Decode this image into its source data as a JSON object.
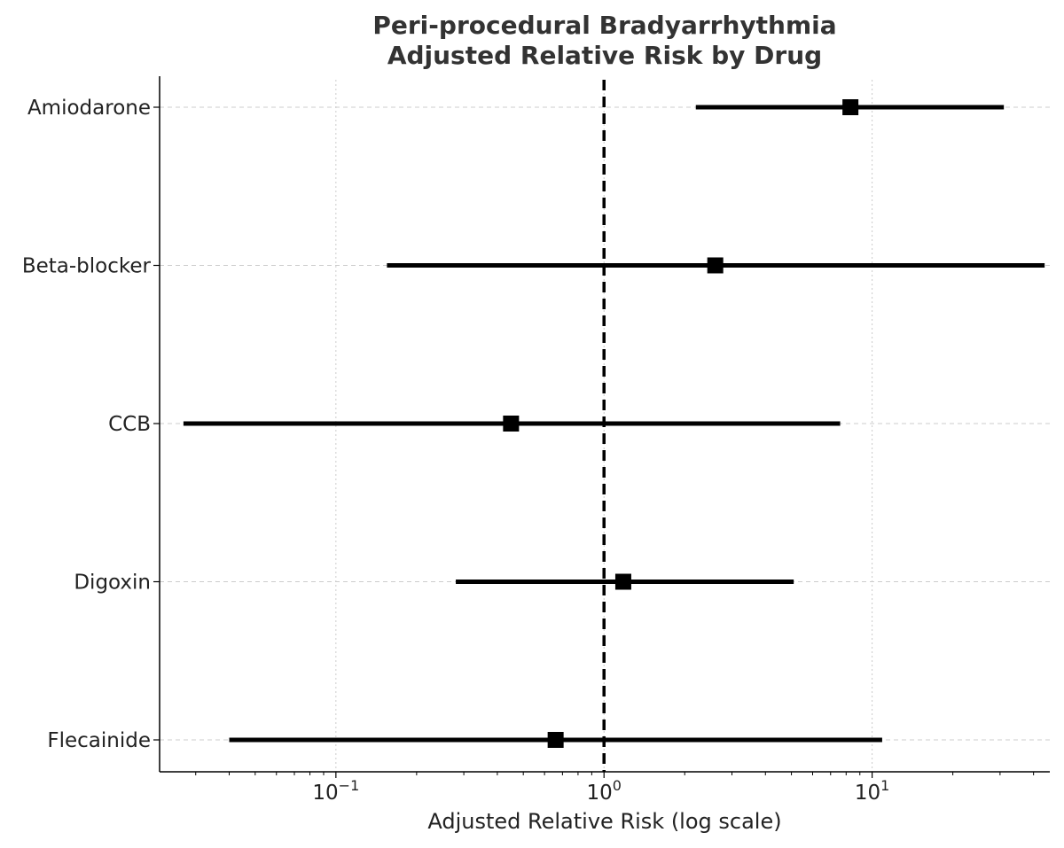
{
  "chart_data": {
    "type": "forest",
    "title_lines": [
      "Peri-procedural Bradyarrhythmia",
      "Adjusted Relative Risk by Drug"
    ],
    "xlabel": "Adjusted Relative Risk (log scale)",
    "xscale": "log",
    "xlim": [
      0.022,
      46
    ],
    "xticks": [
      {
        "value": 0.1,
        "base": "10",
        "exp": "−1"
      },
      {
        "value": 1,
        "base": "10",
        "exp": "0"
      },
      {
        "value": 10,
        "base": "10",
        "exp": "1"
      }
    ],
    "reference_line": {
      "value": 1,
      "style": "dashed"
    },
    "grid": true,
    "categories": [
      "Amiodarone",
      "Beta-blocker",
      "CCB",
      "Digoxin",
      "Flecainide"
    ],
    "points": [
      {
        "label": "Amiodarone",
        "estimate": 8.3,
        "lower": 2.2,
        "upper": 31
      },
      {
        "label": "Beta-blocker",
        "estimate": 2.6,
        "lower": 0.155,
        "upper": 44
      },
      {
        "label": "CCB",
        "estimate": 0.45,
        "lower": 0.027,
        "upper": 7.6
      },
      {
        "label": "Digoxin",
        "estimate": 1.18,
        "lower": 0.28,
        "upper": 5.1
      },
      {
        "label": "Flecainide",
        "estimate": 0.66,
        "lower": 0.04,
        "upper": 10.9
      }
    ],
    "colors": {
      "marker": "#000000",
      "errorbar": "#000000",
      "grid": "#cccccc",
      "axis": "#000000",
      "title": "#333333"
    }
  }
}
